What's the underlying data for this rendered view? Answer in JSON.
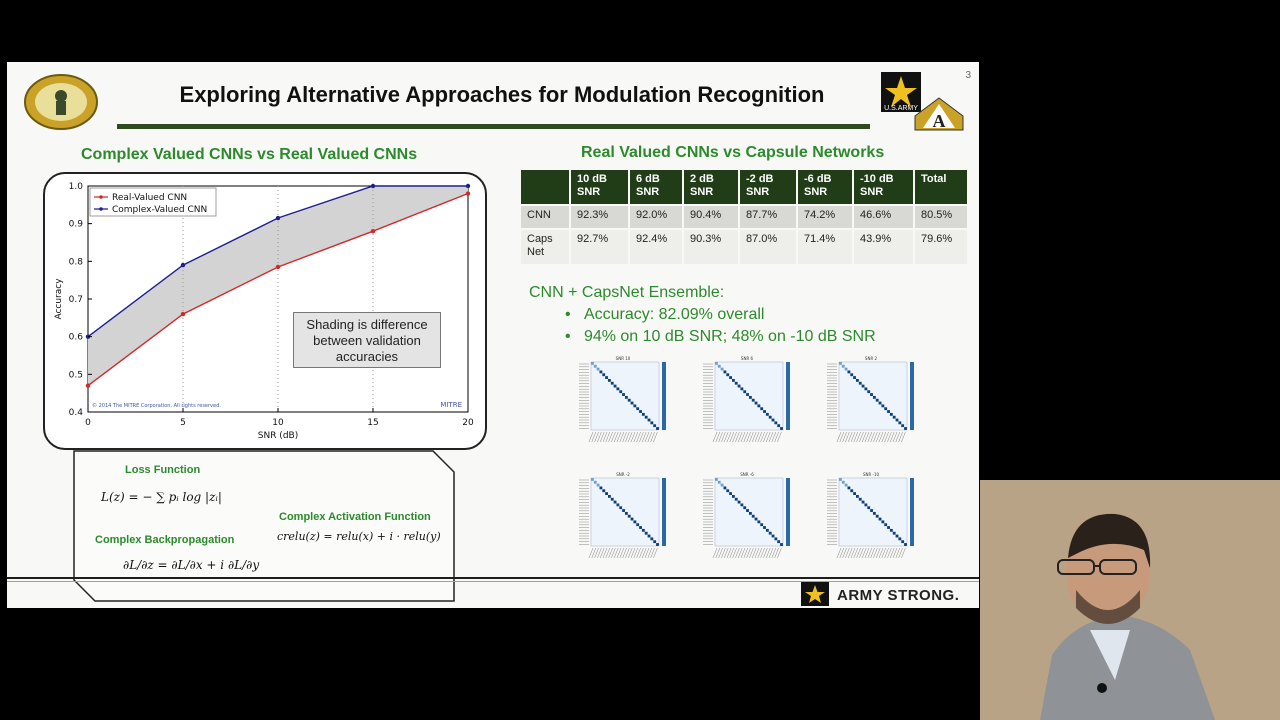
{
  "slide": {
    "title": "Exploring Alternative Approaches for Modulation Recognition",
    "page_number": "3",
    "left_heading": "Complex Valued CNNs vs Real Valued CNNs",
    "right_heading": "Real Valued CNNs vs Capsule Networks",
    "shading_note": "Shading is difference between validation accuracies",
    "footer_brand": "ARMY STRONG.",
    "army_logo_text": "U.S.ARMY"
  },
  "chart_data": {
    "type": "line",
    "x": [
      0,
      5,
      10,
      15,
      20
    ],
    "series": [
      {
        "name": "Real-Valued CNN",
        "values": [
          0.47,
          0.66,
          0.785,
          0.88,
          0.98
        ],
        "color": "#d62728"
      },
      {
        "name": "Complex-Valued CNN",
        "values": [
          0.6,
          0.79,
          0.915,
          1.0,
          1.0
        ],
        "color": "#1f1f8f"
      }
    ],
    "xlabel": "SNR (dB)",
    "ylabel": "Accuracy",
    "xlim": [
      0,
      20
    ],
    "ylim": [
      0.4,
      1.0
    ],
    "xticks": [
      "0",
      "5",
      "10",
      "15",
      "20"
    ],
    "yticks": [
      "0.4",
      "0.5",
      "0.6",
      "0.7",
      "0.8",
      "0.9",
      "1.0"
    ],
    "fill_between": true,
    "fill_color": "#d3d3d3",
    "legend_position": "top-left",
    "grid": "vertical-dotted",
    "copyright": "© 2014 The MITRE Corporation. All rights reserved.",
    "watermark": "MITRE"
  },
  "formulas": {
    "loss_heading": "Loss Function",
    "loss_eq": "L(z) = − ∑ pᵢ log |zᵢ|",
    "backprop_heading": "Complex Backpropagation",
    "backprop_eq": "∂L/∂z = ∂L/∂x + i ∂L/∂y",
    "activation_heading": "Complex Activation Function",
    "activation_eq": "crelu(z) = relu(x) + i · relu(y)"
  },
  "table": {
    "headers": [
      "",
      "10 dB SNR",
      "6 dB SNR",
      "2 dB SNR",
      "-2 dB SNR",
      "-6 dB SNR",
      "-10 dB SNR",
      "Total"
    ],
    "rows": [
      [
        "CNN",
        "92.3%",
        "92.0%",
        "90.4%",
        "87.7%",
        "74.2%",
        "46.6%",
        "80.5%"
      ],
      [
        "Caps Net",
        "92.7%",
        "92.4%",
        "90.3%",
        "87.0%",
        "71.4%",
        "43.9%",
        "79.6%"
      ]
    ]
  },
  "ensemble": {
    "heading": "CNN + CapsNet Ensemble:",
    "bullets": [
      "Accuracy: 82.09% overall",
      "94% on 10 dB SNR; 48% on -10 dB SNR"
    ]
  },
  "confusion_matrices": [
    {
      "title": "SNR 10"
    },
    {
      "title": "SNR 6"
    },
    {
      "title": "SNR 2"
    },
    {
      "title": "SNR -2"
    },
    {
      "title": "SNR -6"
    },
    {
      "title": "SNR -10"
    }
  ],
  "colors": {
    "accent_green": "#2c8a2c",
    "table_header": "#203d18",
    "title_bar": "#2f4a1f"
  }
}
